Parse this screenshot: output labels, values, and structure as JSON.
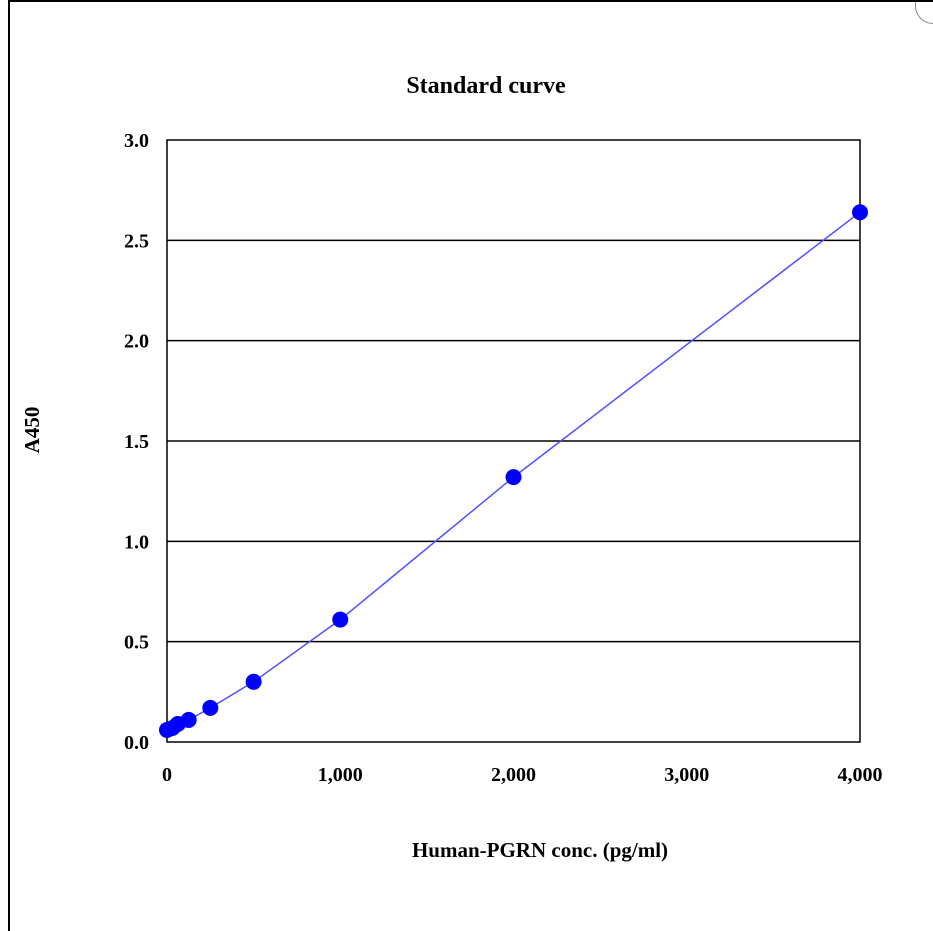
{
  "chart_data": {
    "type": "scatter",
    "title": "Standard curve",
    "xlabel": "Human-PGRN conc. (pg/ml)",
    "ylabel": "A450",
    "xlim": [
      0,
      4000
    ],
    "ylim": [
      0,
      3.0
    ],
    "x_ticks": [
      0,
      1000,
      2000,
      3000,
      4000
    ],
    "x_tick_labels": [
      "0",
      "1,000",
      "2,000",
      "3,000",
      "4,000"
    ],
    "y_ticks": [
      0,
      0.5,
      1.0,
      1.5,
      2.0,
      2.5,
      3.0
    ],
    "y_tick_labels": [
      "0.0",
      "0.5",
      "1.0",
      "1.5",
      "2.0",
      "2.5",
      "3.0"
    ],
    "grid": "horizontal",
    "legend": "none",
    "series": [
      {
        "x": [
          0,
          31.25,
          62.5,
          125,
          250,
          500,
          1000,
          2000,
          4000
        ],
        "y": [
          0.06,
          0.07,
          0.09,
          0.11,
          0.17,
          0.3,
          0.61,
          1.32,
          2.64
        ]
      }
    ],
    "colors": {
      "marker": "#0000ff",
      "line": "#5050ff",
      "grid": "#000000"
    }
  }
}
